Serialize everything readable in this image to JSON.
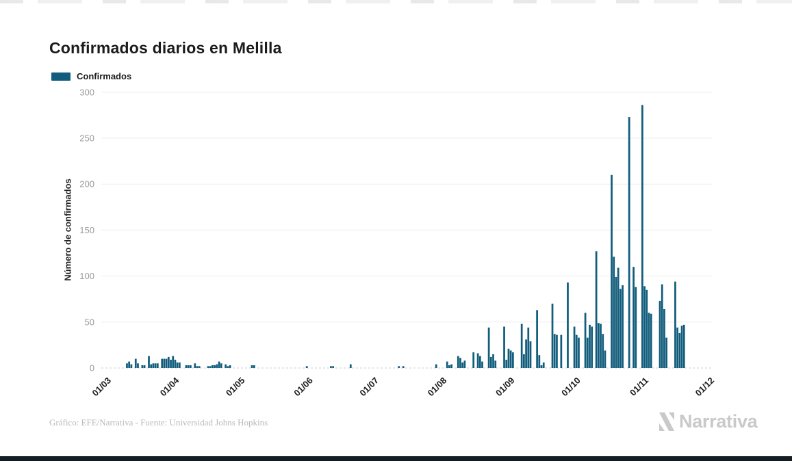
{
  "header": {
    "title": "Confirmados diarios en Melilla"
  },
  "legend": {
    "label": "Confirmados",
    "color": "#125d7c"
  },
  "footer": {
    "credit": "Gráfico: EFE/Narrativa - Fuente: Universidad Johns Hopkins",
    "brand": "Narrativa"
  },
  "colors": {
    "bar": "#125d7c",
    "grid": "#ededed",
    "zero_line": "#cfcfcf",
    "axis_text": "#9b9b9b",
    "dark_text": "#1b1b1b",
    "brand_gray": "#c9c9c9"
  },
  "chart_data": {
    "type": "bar",
    "title": "Confirmados diarios en Melilla",
    "xlabel": "",
    "ylabel": "Número de confirmados",
    "ylim": [
      0,
      300
    ],
    "yticks": [
      0,
      50,
      100,
      150,
      200,
      250,
      300
    ],
    "xtick_labels": [
      "01/03",
      "01/04",
      "01/05",
      "01/06",
      "01/07",
      "01/08",
      "01/09",
      "01/10",
      "01/11",
      "01/12"
    ],
    "grid": true,
    "legend_position": "top-left",
    "bar_color": "#125d7c",
    "series": [
      {
        "name": "Confirmados",
        "months": [
          {
            "label": "03",
            "values": [
              0,
              0,
              0,
              0,
              0,
              0,
              0,
              5,
              7,
              4,
              0,
              10,
              5,
              0,
              3,
              3,
              0,
              13,
              4,
              5,
              5,
              5,
              0,
              10,
              10,
              10,
              12,
              9,
              13,
              9,
              6
            ]
          },
          {
            "label": "04",
            "values": [
              6,
              0,
              0,
              3,
              3,
              3,
              0,
              5,
              2,
              2,
              0,
              0,
              0,
              2,
              2,
              3,
              3,
              4,
              7,
              5,
              0,
              4,
              2,
              3,
              0,
              0,
              0,
              0,
              0,
              0
            ]
          },
          {
            "label": "05",
            "values": [
              0,
              0,
              0,
              3,
              3,
              0,
              0,
              0,
              0,
              0,
              0,
              0,
              0,
              0,
              0,
              0,
              0,
              0,
              0,
              0,
              0,
              0,
              0,
              0,
              0,
              0,
              0,
              0,
              2,
              0,
              0
            ]
          },
          {
            "label": "06",
            "values": [
              0,
              0,
              0,
              0,
              0,
              0,
              0,
              0,
              2,
              2,
              0,
              0,
              0,
              0,
              0,
              0,
              0,
              4,
              0,
              0,
              0,
              0,
              0,
              0,
              0,
              0,
              0,
              0,
              0,
              0
            ]
          },
          {
            "label": "07",
            "values": [
              0,
              0,
              0,
              0,
              0,
              0,
              0,
              0,
              0,
              2,
              0,
              2,
              0,
              0,
              0,
              0,
              0,
              0,
              0,
              0,
              0,
              0,
              0,
              0,
              0,
              0,
              4,
              0,
              0,
              0,
              0
            ]
          },
          {
            "label": "08",
            "values": [
              7,
              3,
              4,
              0,
              0,
              13,
              11,
              6,
              8,
              0,
              0,
              0,
              17,
              0,
              16,
              13,
              7,
              0,
              0,
              44,
              12,
              15,
              8,
              0,
              0,
              0,
              45,
              9,
              21,
              19,
              17
            ]
          },
          {
            "label": "09",
            "values": [
              0,
              0,
              0,
              48,
              15,
              31,
              44,
              29,
              0,
              0,
              63,
              14,
              3,
              6,
              0,
              0,
              0,
              70,
              37,
              36,
              0,
              36,
              0,
              0,
              93,
              0,
              0,
              45,
              36,
              33
            ]
          },
          {
            "label": "10",
            "values": [
              0,
              0,
              60,
              33,
              47,
              45,
              0,
              127,
              49,
              48,
              37,
              19,
              0,
              0,
              210,
              121,
              99,
              109,
              86,
              90,
              0,
              0,
              273,
              0,
              110,
              88,
              0,
              0,
              286,
              89,
              85
            ]
          },
          {
            "label": "11",
            "values": [
              60,
              59,
              0,
              0,
              0,
              73,
              91,
              64,
              33,
              0,
              0,
              0,
              94,
              44,
              38,
              46,
              47,
              0,
              0,
              0,
              0,
              0,
              0,
              0,
              0,
              0,
              0,
              0,
              0,
              0
            ]
          }
        ]
      }
    ]
  }
}
